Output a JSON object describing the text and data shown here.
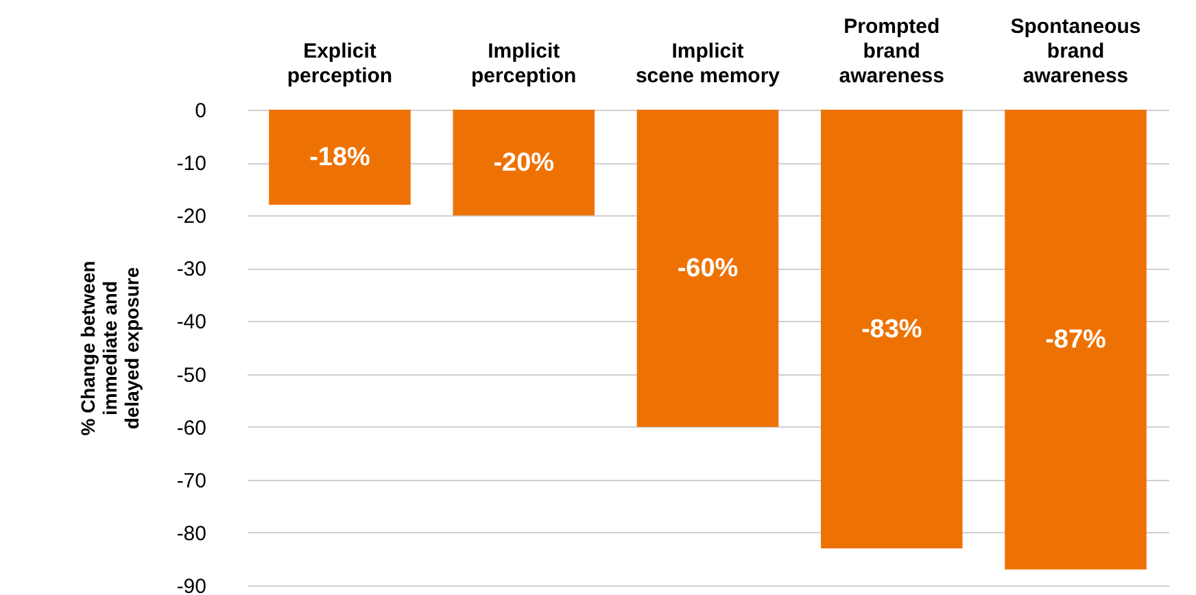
{
  "chart_data": {
    "type": "bar",
    "ylabel": "% Change between\nimmediate and\ndelayed exposure",
    "categories": [
      "Explicit\nperception",
      "Implicit\nperception",
      "Implicit\nscene memory",
      "Prompted\nbrand\nawareness",
      "Spontaneous\nbrand\nawareness"
    ],
    "values": [
      -18,
      -20,
      -60,
      -83,
      -87
    ],
    "value_labels": [
      "-18%",
      "-20%",
      "-60%",
      "-83%",
      "-87%"
    ],
    "color": "#ee7203",
    "ylim": [
      -90,
      0
    ],
    "yticks": [
      0,
      -10,
      -20,
      -30,
      -40,
      -50,
      -60,
      -70,
      -80,
      -90
    ],
    "grid": "y"
  }
}
